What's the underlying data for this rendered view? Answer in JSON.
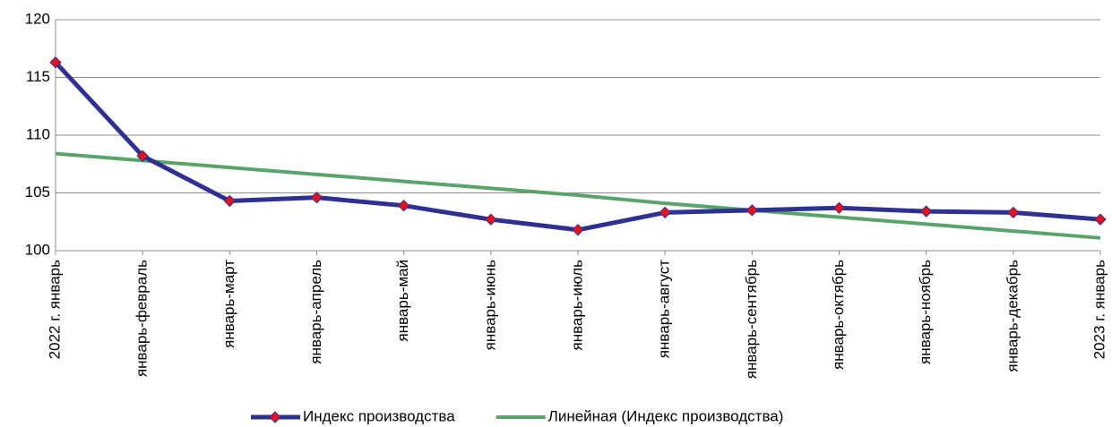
{
  "chart_data": {
    "type": "line",
    "categories": [
      "2022 г. январь",
      "январь-февраль",
      "январь-март",
      "январь-апрель",
      "январь-май",
      "январь-июнь",
      "январь-июль",
      "январь-август",
      "январь-сентябрь",
      "январь-октябрь",
      "январь-ноябрь",
      "январь-декабрь",
      "2023 г. январь"
    ],
    "series": [
      {
        "name": "Индекс производства",
        "color": "#2e3192",
        "marker": "diamond",
        "marker_color": "#e8101c",
        "values": [
          116.3,
          108.2,
          104.3,
          104.6,
          103.9,
          102.7,
          101.8,
          103.3,
          103.5,
          103.7,
          103.4,
          103.3,
          102.7
        ]
      },
      {
        "name": "Линейная (Индекс производства)",
        "color": "#5aa36b",
        "values": [
          108.4,
          107.8,
          107.2,
          106.6,
          106.0,
          105.4,
          104.8,
          104.1,
          103.5,
          102.9,
          102.3,
          101.7,
          101.1
        ]
      }
    ],
    "ylim": [
      100,
      120
    ],
    "yticks": [
      100,
      105,
      110,
      115,
      120
    ],
    "grid": true,
    "legend": "bottom"
  }
}
